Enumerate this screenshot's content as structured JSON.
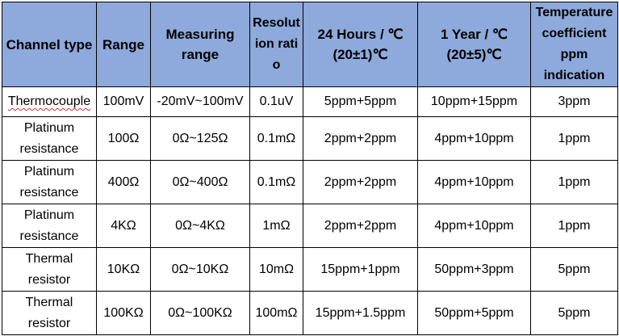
{
  "table": {
    "header": {
      "channel_type": "Channel type",
      "range": "Range",
      "measuring_range": "Measuring range",
      "resolution_ratio": "Resolution ratio",
      "hours_24": "24 Hours / ℃ (20±1)℃",
      "year_1": "1 Year / ℃ (20±5)℃",
      "temp_coeff": "Temperature coefficient ppm indication"
    },
    "rows": [
      {
        "channel_type": "Thermocouple",
        "range": "100mV",
        "measuring_range": "-20mV~100mV",
        "resolution_ratio": "0.1uV",
        "hours_24": "5ppm+5ppm",
        "year_1": "10ppm+15ppm",
        "temp_coeff": "3ppm"
      },
      {
        "channel_type": "Platinum resistance",
        "range": "100Ω",
        "measuring_range": "0Ω~125Ω",
        "resolution_ratio": "0.1mΩ",
        "hours_24": "2ppm+2ppm",
        "year_1": "4ppm+10ppm",
        "temp_coeff": "1ppm"
      },
      {
        "channel_type": "Platinum resistance",
        "range": "400Ω",
        "measuring_range": "0Ω~400Ω",
        "resolution_ratio": "0.1mΩ",
        "hours_24": "2ppm+2ppm",
        "year_1": "4ppm+10ppm",
        "temp_coeff": "1ppm"
      },
      {
        "channel_type": "Platinum resistance",
        "range": "4KΩ",
        "measuring_range": "0Ω~4KΩ",
        "resolution_ratio": "1mΩ",
        "hours_24": "2ppm+2ppm",
        "year_1": "4ppm+10ppm",
        "temp_coeff": "1ppm"
      },
      {
        "channel_type": "Thermal resistor",
        "range": "10KΩ",
        "measuring_range": "0Ω~10KΩ",
        "resolution_ratio": "10mΩ",
        "hours_24": "15ppm+1ppm",
        "year_1": "50ppm+3ppm",
        "temp_coeff": "5ppm"
      },
      {
        "channel_type": "Thermal resistor",
        "range": "100KΩ",
        "measuring_range": "0Ω~100KΩ",
        "resolution_ratio": "100mΩ",
        "hours_24": "15ppm+1.5ppm",
        "year_1": "50ppm+5ppm",
        "temp_coeff": "5ppm"
      }
    ]
  },
  "colors": {
    "header_bg": "#8ea9db",
    "border": "#000000",
    "spellcheck_underline": "#d03030"
  }
}
